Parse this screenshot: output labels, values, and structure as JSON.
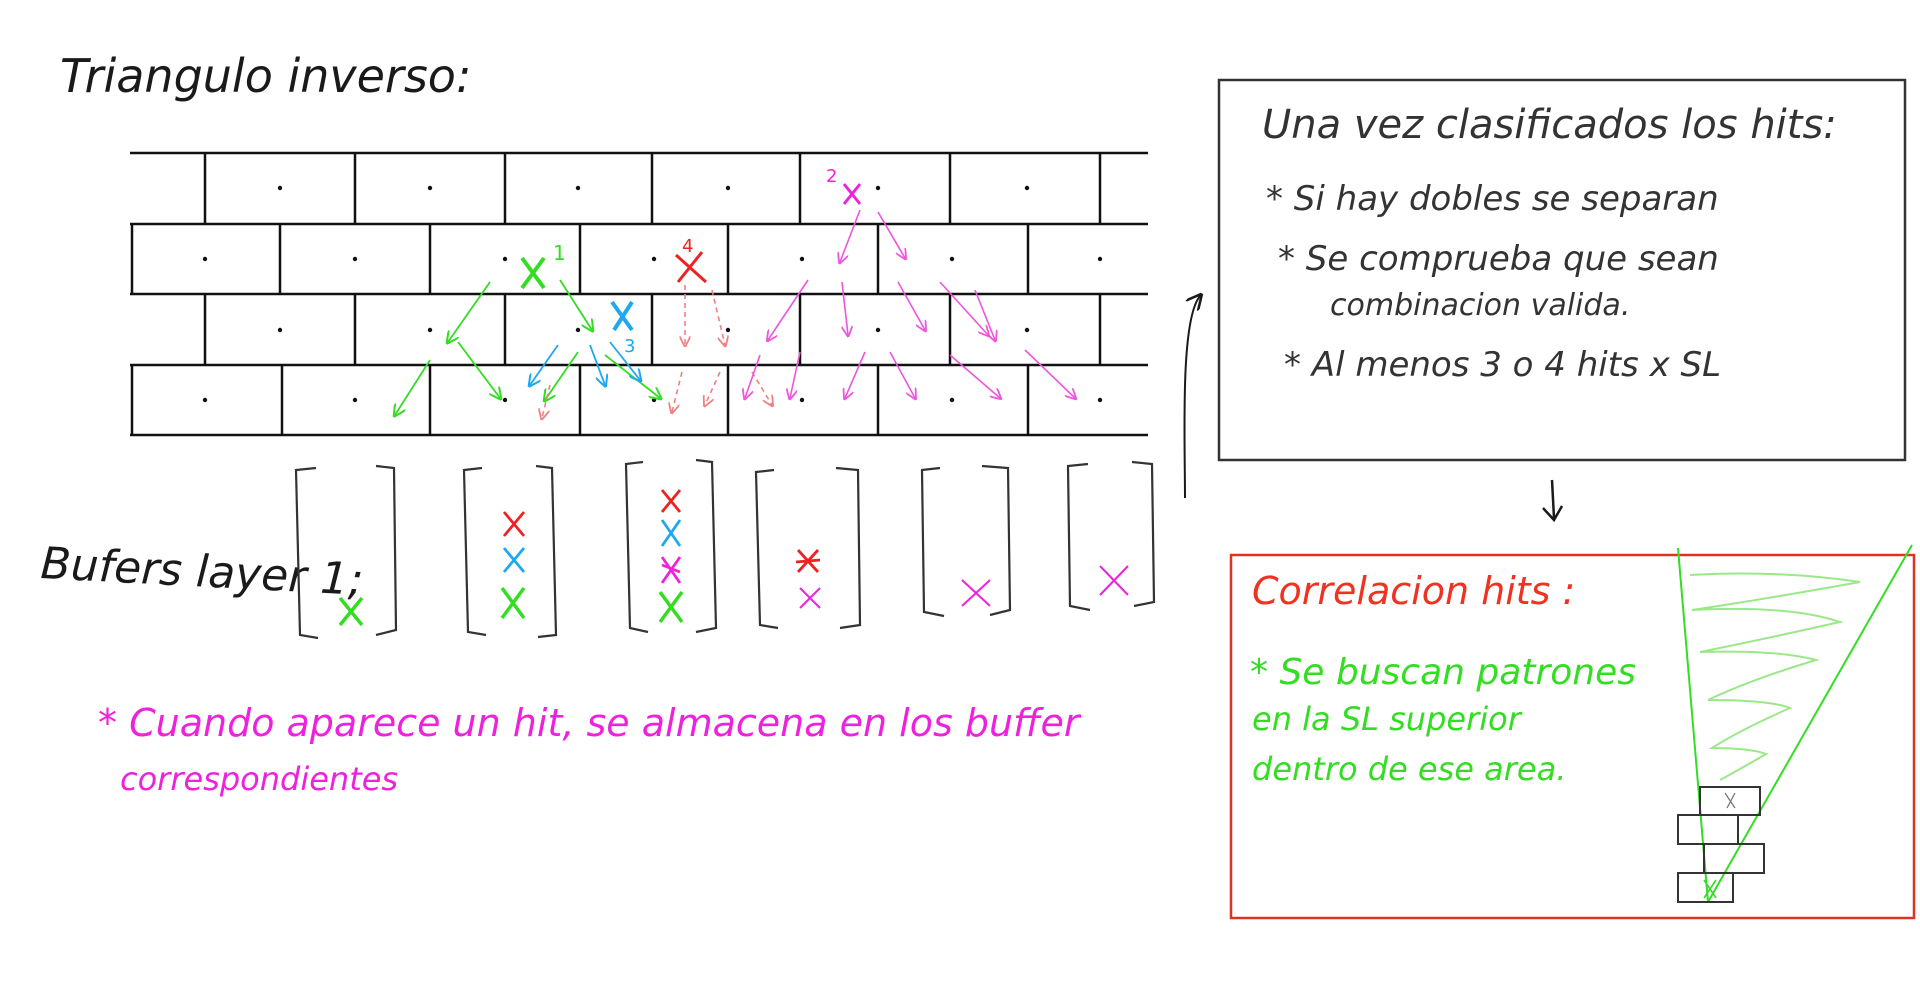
{
  "title": "Triangulo inverso:",
  "buffers_label": "Bufers layer 1;",
  "note": {
    "line1": "* Cuando aparece un hit, se almacena en los buffer",
    "line2": "correspondientes"
  },
  "hit_numbers": [
    "1",
    "2",
    "3",
    "4"
  ],
  "box1": {
    "title": "Una vez clasificados los hits:",
    "items": [
      "* Si hay dobles se separan",
      "* Se comprueba que sean",
      "combinacion valida.",
      "* Al menos 3 o 4 hits x SL"
    ]
  },
  "box2": {
    "title": "Correlacion hits :",
    "items": [
      "* Se buscan patrones",
      "en la SL superior",
      "dentro de ese area."
    ]
  },
  "colors": {
    "green": "#33dd22",
    "blue": "#1fa8ee",
    "red": "#ee2222",
    "magenta": "#ee22dd",
    "ink": "#1a1a1a",
    "box2_border": "#dd3322"
  }
}
